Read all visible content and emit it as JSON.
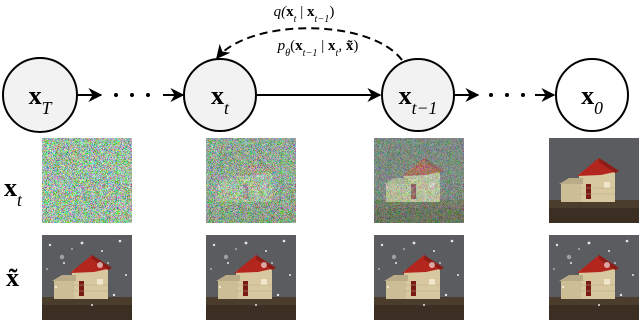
{
  "nodes": [
    {
      "symbol": "x",
      "subscript": "T"
    },
    {
      "symbol": "x",
      "subscript": "t"
    },
    {
      "symbol": "x",
      "subscript": "t−1"
    },
    {
      "symbol": "x",
      "subscript": "0"
    }
  ],
  "forward_label": [
    "q(",
    "x",
    "t",
    " | ",
    "x",
    "t−1",
    ")"
  ],
  "reverse_label": [
    "p",
    "θ",
    "(",
    "x",
    "t−1",
    " | ",
    "x",
    "t",
    ", ",
    "x̃",
    ")"
  ],
  "rows": [
    {
      "symbol": "x",
      "subscript": "t"
    },
    {
      "symbol": "x̃"
    }
  ]
}
